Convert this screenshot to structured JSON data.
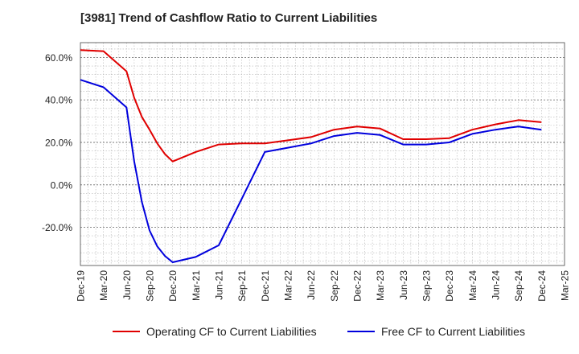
{
  "title": "[3981]  Trend of Cashflow Ratio to Current Liabilities",
  "chart_data": {
    "type": "line",
    "title": "[3981]  Trend of Cashflow Ratio to Current Liabilities",
    "xlabel": "",
    "ylabel": "",
    "x_tick_labels": [
      "Dec-19",
      "Mar-20",
      "Jun-20",
      "Sep-20",
      "Dec-20",
      "Mar-21",
      "Jun-21",
      "Sep-21",
      "Dec-21",
      "Mar-22",
      "Jun-22",
      "Sep-22",
      "Dec-22",
      "Mar-23",
      "Jun-23",
      "Sep-23",
      "Dec-23",
      "Mar-24",
      "Jun-24",
      "Sep-24",
      "Dec-24",
      "Mar-25"
    ],
    "y_tick_labels": [
      "60.0%",
      "40.0%",
      "20.0%",
      "0.0%",
      "-20.0%"
    ],
    "y_ticks": [
      60,
      40,
      20,
      0,
      -20
    ],
    "ylim": [
      -38,
      67
    ],
    "xlim": [
      "Dec-19",
      "Mar-25"
    ],
    "grid": true,
    "legend_position": "bottom",
    "series": [
      {
        "name": "Operating CF to Current Liabilities",
        "color": "#e00000",
        "x": [
          "Dec-19",
          "Mar-20",
          "Jun-20",
          "Jul-20",
          "Aug-20",
          "Sep-20",
          "Oct-20",
          "Nov-20",
          "Dec-20",
          "Mar-21",
          "Jun-21",
          "Sep-21",
          "Dec-21",
          "Mar-22",
          "Jun-22",
          "Sep-22",
          "Dec-22",
          "Mar-23",
          "Jun-23",
          "Sep-23",
          "Dec-23",
          "Mar-24",
          "Jun-24",
          "Sep-24",
          "Dec-24"
        ],
        "values": [
          63.5,
          63.0,
          53.5,
          41.0,
          32.0,
          26.0,
          19.5,
          14.5,
          11.0,
          15.5,
          19.0,
          19.5,
          19.5,
          21.0,
          22.5,
          26.0,
          27.5,
          26.5,
          21.5,
          21.5,
          22.0,
          26.0,
          28.5,
          30.5,
          29.5
        ]
      },
      {
        "name": "Free CF to Current Liabilities",
        "color": "#0000dd",
        "x": [
          "Dec-19",
          "Mar-20",
          "Jun-20",
          "Jul-20",
          "Aug-20",
          "Sep-20",
          "Oct-20",
          "Nov-20",
          "Dec-20",
          "Mar-21",
          "Jun-21",
          "Sep-21",
          "Dec-21",
          "Mar-22",
          "Jun-22",
          "Sep-22",
          "Dec-22",
          "Mar-23",
          "Jun-23",
          "Sep-23",
          "Dec-23",
          "Mar-24",
          "Jun-24",
          "Sep-24",
          "Dec-24"
        ],
        "values": [
          49.5,
          46.0,
          36.5,
          11.0,
          -8.0,
          -21.5,
          -29.0,
          -33.5,
          -36.5,
          -34.0,
          -28.5,
          -6.5,
          15.5,
          17.5,
          19.5,
          23.0,
          24.5,
          23.5,
          19.0,
          19.0,
          20.0,
          24.0,
          26.0,
          27.5,
          26.0
        ]
      }
    ]
  }
}
